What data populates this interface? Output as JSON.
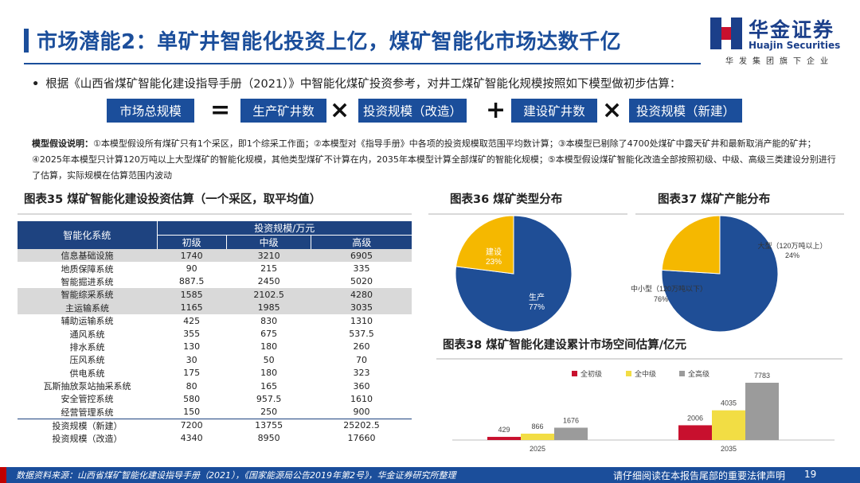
{
  "header": {
    "title": "市场潜能2：单矿井智能化投资上亿，煤矿智能化市场达数千亿"
  },
  "logo": {
    "cn": "华金证券",
    "en": "Huajin Securities",
    "tagline": "华发集团旗下企业"
  },
  "bullet": {
    "dot": "•",
    "text": "根据《山西省煤矿智能化建设指导手册（2021）》中智能化煤矿投资参考，对井工煤矿智能化规模按照如下模型做初步估算："
  },
  "formula": {
    "total": "市场总规模",
    "eq": "=",
    "mines": "生产矿井数",
    "times1": "×",
    "invest_retrofit": "投资规模（改造）",
    "plus": "+",
    "new_mines": "建设矿井数",
    "times2": "×",
    "invest_new": "投资规模（新建）"
  },
  "assumptions": {
    "label": "模型假设说明：",
    "text": "①本模型假设所有煤矿只有1个采区，即1个综采工作面；②本模型对《指导手册》中各项的投资规模取范围平均数计算；③本模型已剔除了4700处煤矿中露天矿井和最新取消产能的矿井；④2025年本模型只计算120万吨以上大型煤矿的智能化规模，其他类型煤矿不计算在内，2035年本模型计算全部煤矿的智能化规模；⑤本模型假设煤矿智能化改造全部按照初级、中级、高级三类建设分别进行了估算，实际规模在估算范围内波动"
  },
  "table": {
    "title": "图表35 煤矿智能化建设投资估算（一个采区，取平均值）",
    "col_system": "智能化系统",
    "col_group": "投资规模/万元",
    "col_levels": [
      "初级",
      "中级",
      "高级"
    ],
    "rows": [
      {
        "name": "信息基础设施",
        "v": [
          "1740",
          "3210",
          "6905"
        ],
        "shade": true
      },
      {
        "name": "地质保障系统",
        "v": [
          "90",
          "215",
          "335"
        ],
        "shade": false
      },
      {
        "name": "智能掘进系统",
        "v": [
          "887.5",
          "2450",
          "5020"
        ],
        "shade": false
      },
      {
        "name": "智能综采系统",
        "v": [
          "1585",
          "2102.5",
          "4280"
        ],
        "shade": true
      },
      {
        "name": "主运输系统",
        "v": [
          "1165",
          "1985",
          "3035"
        ],
        "shade": true
      },
      {
        "name": "辅助运输系统",
        "v": [
          "425",
          "830",
          "1310"
        ],
        "shade": false
      },
      {
        "name": "通风系统",
        "v": [
          "355",
          "675",
          "537.5"
        ],
        "shade": false
      },
      {
        "name": "排水系统",
        "v": [
          "130",
          "180",
          "260"
        ],
        "shade": false
      },
      {
        "name": "压风系统",
        "v": [
          "30",
          "50",
          "70"
        ],
        "shade": false
      },
      {
        "name": "供电系统",
        "v": [
          "175",
          "180",
          "323"
        ],
        "shade": false
      },
      {
        "name": "瓦斯抽放泵站抽采系统",
        "v": [
          "80",
          "165",
          "360"
        ],
        "shade": false
      },
      {
        "name": "安全管控系统",
        "v": [
          "580",
          "957.5",
          "1610"
        ],
        "shade": false
      },
      {
        "name": "经营管理系统",
        "v": [
          "150",
          "250",
          "900"
        ],
        "shade": false
      },
      {
        "name": "投资规模（新建）",
        "v": [
          "7200",
          "13755",
          "25202.5"
        ],
        "shade": false,
        "total": true
      },
      {
        "name": "投资规模（改造）",
        "v": [
          "4340",
          "8950",
          "17660"
        ],
        "shade": false
      }
    ]
  },
  "chart_data": [
    {
      "type": "pie",
      "title": "图表36 煤矿类型分布",
      "labels": [
        "生产",
        "建设"
      ],
      "values": [
        77,
        23
      ],
      "value_labels": [
        "77%",
        "23%"
      ],
      "colors": [
        "#1f4e96",
        "#f5b800"
      ]
    },
    {
      "type": "pie",
      "title": "图表37 煤矿产能分布",
      "labels": [
        "中小型（120万吨以下）",
        "大型（120万吨以上）"
      ],
      "values": [
        76,
        24
      ],
      "value_labels": [
        "76%",
        "24%"
      ],
      "colors": [
        "#1f4e96",
        "#f5b800"
      ]
    },
    {
      "type": "bar",
      "title": "图表38 煤矿智能化建设累计市场空间估算/亿元",
      "categories": [
        "2025",
        "2035"
      ],
      "series": [
        {
          "name": "全初级",
          "values": [
            429,
            2006
          ],
          "color": "#c8102e"
        },
        {
          "name": "全中级",
          "values": [
            866,
            4035
          ],
          "color": "#f2dd44"
        },
        {
          "name": "全高级",
          "values": [
            1676,
            7783
          ],
          "color": "#9b9b9b"
        }
      ],
      "ylim": [
        0,
        7783
      ],
      "legend": "top"
    }
  ],
  "pie1_labels": {
    "a_name": "生产",
    "a_pct": "77%",
    "b_name": "建设",
    "b_pct": "23%"
  },
  "pie2_labels": {
    "a_name": "中小型（120万吨以下）",
    "a_pct": "76%",
    "b_name": "大型（120万吨以上）",
    "b_pct": "24%"
  },
  "footer": {
    "source": "数据资料来源：山西省煤矿智能化建设指导手册（2021），《国家能源局公告2019年第2号》，华金证券研究所整理",
    "note": "请仔细阅读在本报告尾部的重要法律声明",
    "page": "19"
  }
}
